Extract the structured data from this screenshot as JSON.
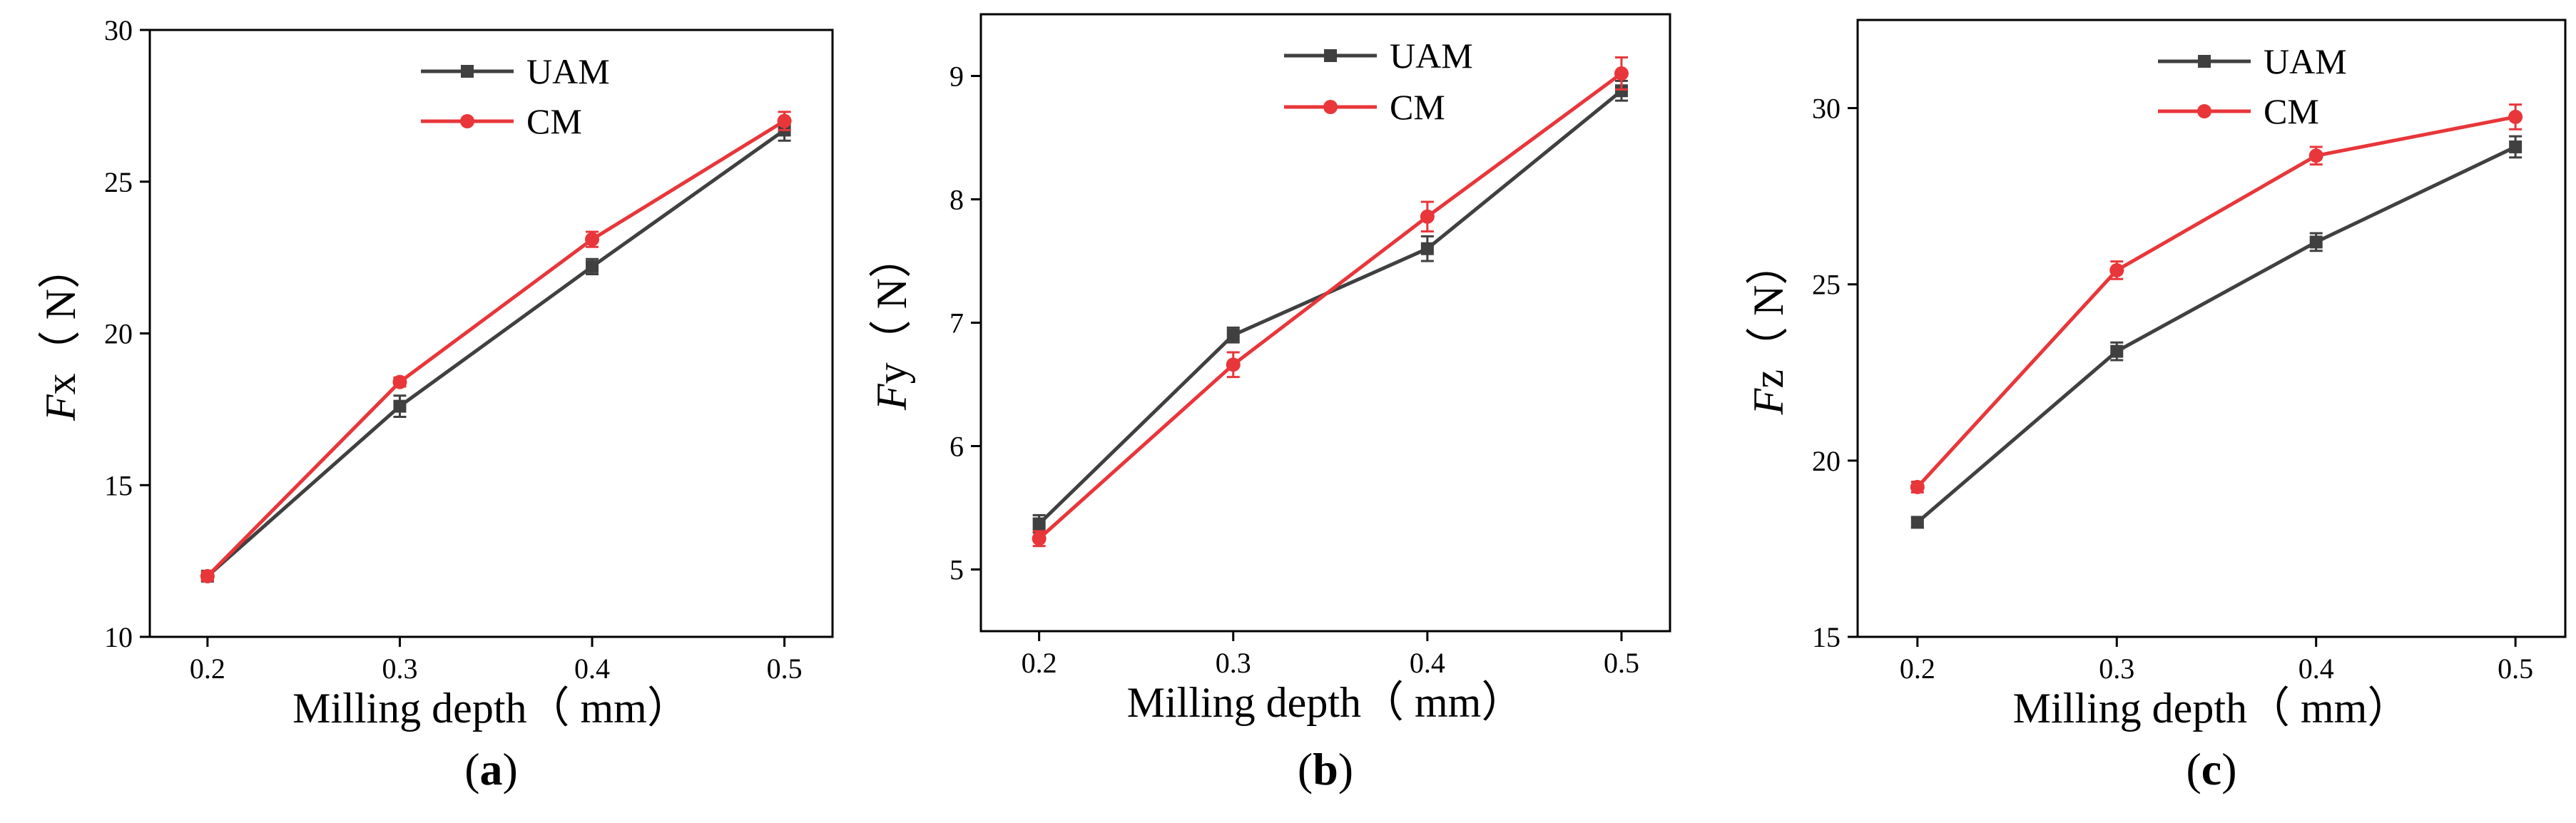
{
  "figure": {
    "description_free": true,
    "colors": {
      "UAM": "#404040",
      "CM": "#e8363a",
      "axis": "#000000"
    }
  },
  "chart_data": [
    {
      "type": "line",
      "panel_label": "a",
      "title": "",
      "xlabel": "Milling depth（ mm）",
      "ylabel_main": "F",
      "ylabel_rest": "x（ N）",
      "x": [
        0.2,
        0.3,
        0.4,
        0.5
      ],
      "x_tick_labels": [
        "0.2",
        "0.3",
        "0.4",
        "0.5"
      ],
      "xlim": [
        0.17,
        0.525
      ],
      "ylim": [
        10,
        30
      ],
      "y_ticks": [
        10,
        15,
        20,
        25,
        30
      ],
      "legend": [
        "UAM",
        "CM"
      ],
      "legend_position": "top-center",
      "series": [
        {
          "name": "UAM",
          "color": "#404040",
          "marker": "square",
          "values": [
            12.0,
            17.6,
            22.2,
            26.7
          ],
          "errors": [
            0.15,
            0.35,
            0.25,
            0.35
          ]
        },
        {
          "name": "CM",
          "color": "#e8363a",
          "marker": "circle",
          "values": [
            12.0,
            18.4,
            23.1,
            27.0
          ],
          "errors": [
            0.15,
            0.15,
            0.25,
            0.3
          ]
        }
      ]
    },
    {
      "type": "line",
      "panel_label": "b",
      "title": "",
      "xlabel": "Milling depth（ mm）",
      "ylabel_main": "F",
      "ylabel_rest": "y（ N）",
      "x": [
        0.2,
        0.3,
        0.4,
        0.5
      ],
      "x_tick_labels": [
        "0.2",
        "0.3",
        "0.4",
        "0.5"
      ],
      "xlim": [
        0.17,
        0.525
      ],
      "ylim": [
        4.5,
        9.5
      ],
      "y_ticks": [
        5,
        6,
        7,
        8,
        9
      ],
      "legend": [
        "UAM",
        "CM"
      ],
      "legend_position": "top-center",
      "series": [
        {
          "name": "UAM",
          "color": "#404040",
          "marker": "square",
          "values": [
            5.37,
            6.9,
            7.6,
            8.88
          ],
          "errors": [
            0.07,
            0.06,
            0.1,
            0.08
          ]
        },
        {
          "name": "CM",
          "color": "#e8363a",
          "marker": "circle",
          "values": [
            5.25,
            6.66,
            7.86,
            9.02
          ],
          "errors": [
            0.06,
            0.1,
            0.12,
            0.13
          ]
        }
      ]
    },
    {
      "type": "line",
      "panel_label": "c",
      "title": "",
      "xlabel": "Milling depth（ mm）",
      "ylabel_main": "F",
      "ylabel_rest": "z（ N）",
      "x": [
        0.2,
        0.3,
        0.4,
        0.5
      ],
      "x_tick_labels": [
        "0.2",
        "0.3",
        "0.4",
        "0.5"
      ],
      "xlim": [
        0.17,
        0.525
      ],
      "ylim": [
        15,
        32.5
      ],
      "y_ticks": [
        15,
        20,
        25,
        30
      ],
      "legend": [
        "UAM",
        "CM"
      ],
      "legend_position": "top-center",
      "series": [
        {
          "name": "UAM",
          "color": "#404040",
          "marker": "square",
          "values": [
            18.25,
            23.1,
            26.2,
            28.9
          ],
          "errors": [
            0.15,
            0.25,
            0.25,
            0.3
          ]
        },
        {
          "name": "CM",
          "color": "#e8363a",
          "marker": "circle",
          "values": [
            19.25,
            25.4,
            28.65,
            29.75
          ],
          "errors": [
            0.15,
            0.25,
            0.25,
            0.35
          ]
        }
      ]
    }
  ]
}
